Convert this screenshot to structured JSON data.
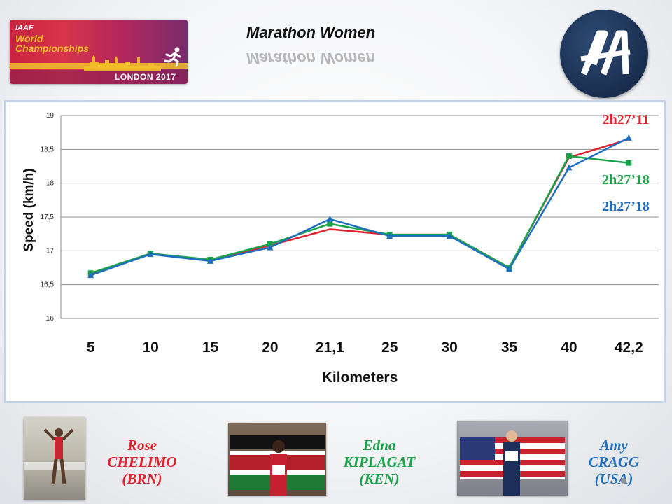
{
  "header": {
    "title": "Marathon Women",
    "iaaf_logo": {
      "brand": "IAAF",
      "line1": "World",
      "line2": "Championships",
      "city": "LONDON 2017"
    },
    "aa_logo": {
      "icon": "aa-monogram-icon"
    }
  },
  "colors": {
    "red": "#e0202c",
    "green": "#1aa44a",
    "blue": "#1f6fc0"
  },
  "chart_data": {
    "type": "line",
    "categories": [
      "5",
      "10",
      "15",
      "20",
      "21,1",
      "25",
      "30",
      "35",
      "40",
      "42,2"
    ],
    "xlabel": "Kilometers",
    "ylabel": "Speed (km/h)",
    "ylim": [
      16,
      19
    ],
    "yticks": [
      "16",
      "16,5",
      "17",
      "17,5",
      "18",
      "18,5",
      "19"
    ],
    "ytick_values": [
      16,
      16.5,
      17,
      17.5,
      18,
      18.5,
      19
    ],
    "grid": true,
    "series": [
      {
        "color": "#e0202c",
        "marker": "none",
        "values": [
          16.65,
          16.96,
          16.86,
          17.08,
          17.32,
          17.24,
          17.24,
          16.75,
          18.38,
          18.65
        ]
      },
      {
        "color": "#1aa44a",
        "marker": "square",
        "values": [
          16.67,
          16.96,
          16.87,
          17.1,
          17.4,
          17.24,
          17.24,
          16.75,
          18.4,
          18.3
        ]
      },
      {
        "color": "#1f6fc0",
        "marker": "triangle",
        "values": [
          16.64,
          16.95,
          16.85,
          17.05,
          17.47,
          17.22,
          17.22,
          16.73,
          18.23,
          18.67
        ]
      }
    ],
    "annotations": [
      {
        "text": "2h27’11",
        "color": "#e0202c"
      },
      {
        "text": "2h27’18",
        "color": "#1aa44a"
      },
      {
        "text": "2h27’18",
        "color": "#1f6fc0"
      }
    ]
  },
  "athletes": [
    {
      "first": "Rose",
      "last": "CHELIMO",
      "country": "(BRN)",
      "color": "#e0202c"
    },
    {
      "first": "Edna",
      "last": "KIPLAGAT",
      "country": "(KEN)",
      "color": "#1aa44a"
    },
    {
      "first": "Amy",
      "last": "CRAGG",
      "country": "(USA)",
      "color": "#1f6fc0"
    }
  ]
}
